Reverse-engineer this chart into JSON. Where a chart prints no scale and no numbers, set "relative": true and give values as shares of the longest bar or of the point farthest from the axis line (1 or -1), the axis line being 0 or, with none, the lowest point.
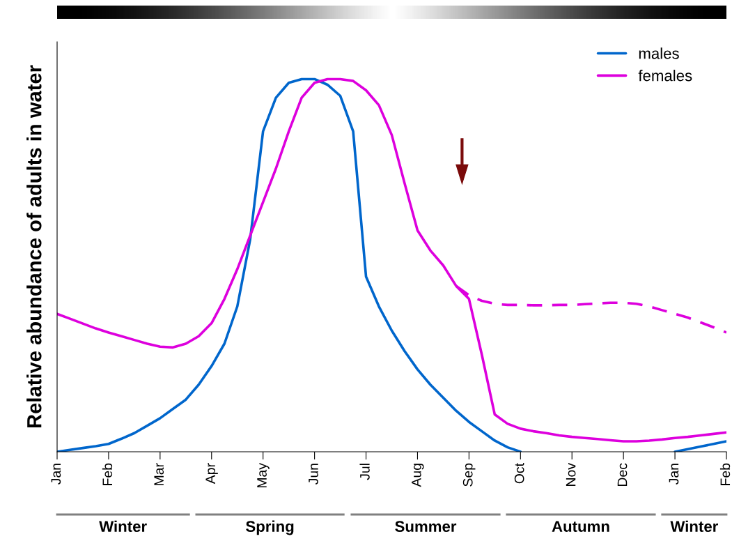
{
  "chart_data": {
    "type": "line",
    "relative": true,
    "ylabel": "Relative abundance of adults in water",
    "categories": [
      "Jan",
      null,
      null,
      null,
      "Feb",
      null,
      null,
      null,
      "Mar",
      null,
      null,
      null,
      "Apr",
      null,
      null,
      null,
      "May",
      null,
      null,
      null,
      "Jun",
      null,
      null,
      null,
      "Jul",
      null,
      null,
      null,
      "Aug",
      null,
      null,
      null,
      "Sep",
      null,
      null,
      null,
      "Oct",
      null,
      null,
      null,
      "Nov",
      null,
      null,
      null,
      "Dec",
      null,
      null,
      null,
      "Jan",
      null,
      null,
      null,
      "Feb"
    ],
    "annotations": [
      "Winter",
      "Spring",
      "Summer",
      "Autumn",
      "Winter"
    ],
    "legend": "top right",
    "grid": false,
    "marker": "none",
    "series": [
      {
        "name": "males",
        "color": "#0066cc",
        "line_style": "solid",
        "values": [
          0,
          0.005,
          0.01,
          0.015,
          0.021,
          0.035,
          0.05,
          0.07,
          0.09,
          0.115,
          0.14,
          0.18,
          0.23,
          0.29,
          0.39,
          0.57,
          0.86,
          0.95,
          0.99,
          1.0,
          1.0,
          0.985,
          0.955,
          0.86,
          0.47,
          0.39,
          0.325,
          0.27,
          0.221,
          0.18,
          0.145,
          0.11,
          0.08,
          0.055,
          0.03,
          0.012,
          0,
          null,
          null,
          null,
          null,
          null,
          null,
          null,
          null,
          null,
          null,
          null,
          0,
          0.007,
          0.014,
          0.021,
          0.028
        ]
      },
      {
        "name": "females",
        "color": "#dd00dd",
        "line_style": "solid",
        "values": [
          0.37,
          0.357,
          0.344,
          0.331,
          0.32,
          0.31,
          0.3,
          0.29,
          0.282,
          0.28,
          0.29,
          0.31,
          0.345,
          0.41,
          0.49,
          0.58,
          0.67,
          0.76,
          0.86,
          0.95,
          0.99,
          1.0,
          1.0,
          0.995,
          0.97,
          0.93,
          0.85,
          0.72,
          0.594,
          0.54,
          0.5,
          0.445,
          0.41,
          0.26,
          0.1,
          0.075,
          0.062,
          0.055,
          0.05,
          0.044,
          0.04,
          0.037,
          0.034,
          0.031,
          0.028,
          0.028,
          0.03,
          0.033,
          0.037,
          0.04,
          0.044,
          0.048,
          0.052
        ]
      },
      {
        "color": "#dd00dd",
        "line_style": "dashed",
        "values": [
          null,
          null,
          null,
          null,
          null,
          null,
          null,
          null,
          null,
          null,
          null,
          null,
          null,
          null,
          null,
          null,
          null,
          null,
          null,
          null,
          null,
          null,
          null,
          null,
          null,
          null,
          null,
          null,
          null,
          null,
          null,
          0.445,
          0.42,
          0.405,
          0.397,
          0.394,
          0.394,
          0.393,
          0.393,
          0.394,
          0.394,
          0.396,
          0.398,
          0.4,
          0.4,
          0.397,
          0.39,
          0.38,
          0.37,
          0.36,
          0.347,
          0.334,
          0.32
        ]
      }
    ]
  }
}
